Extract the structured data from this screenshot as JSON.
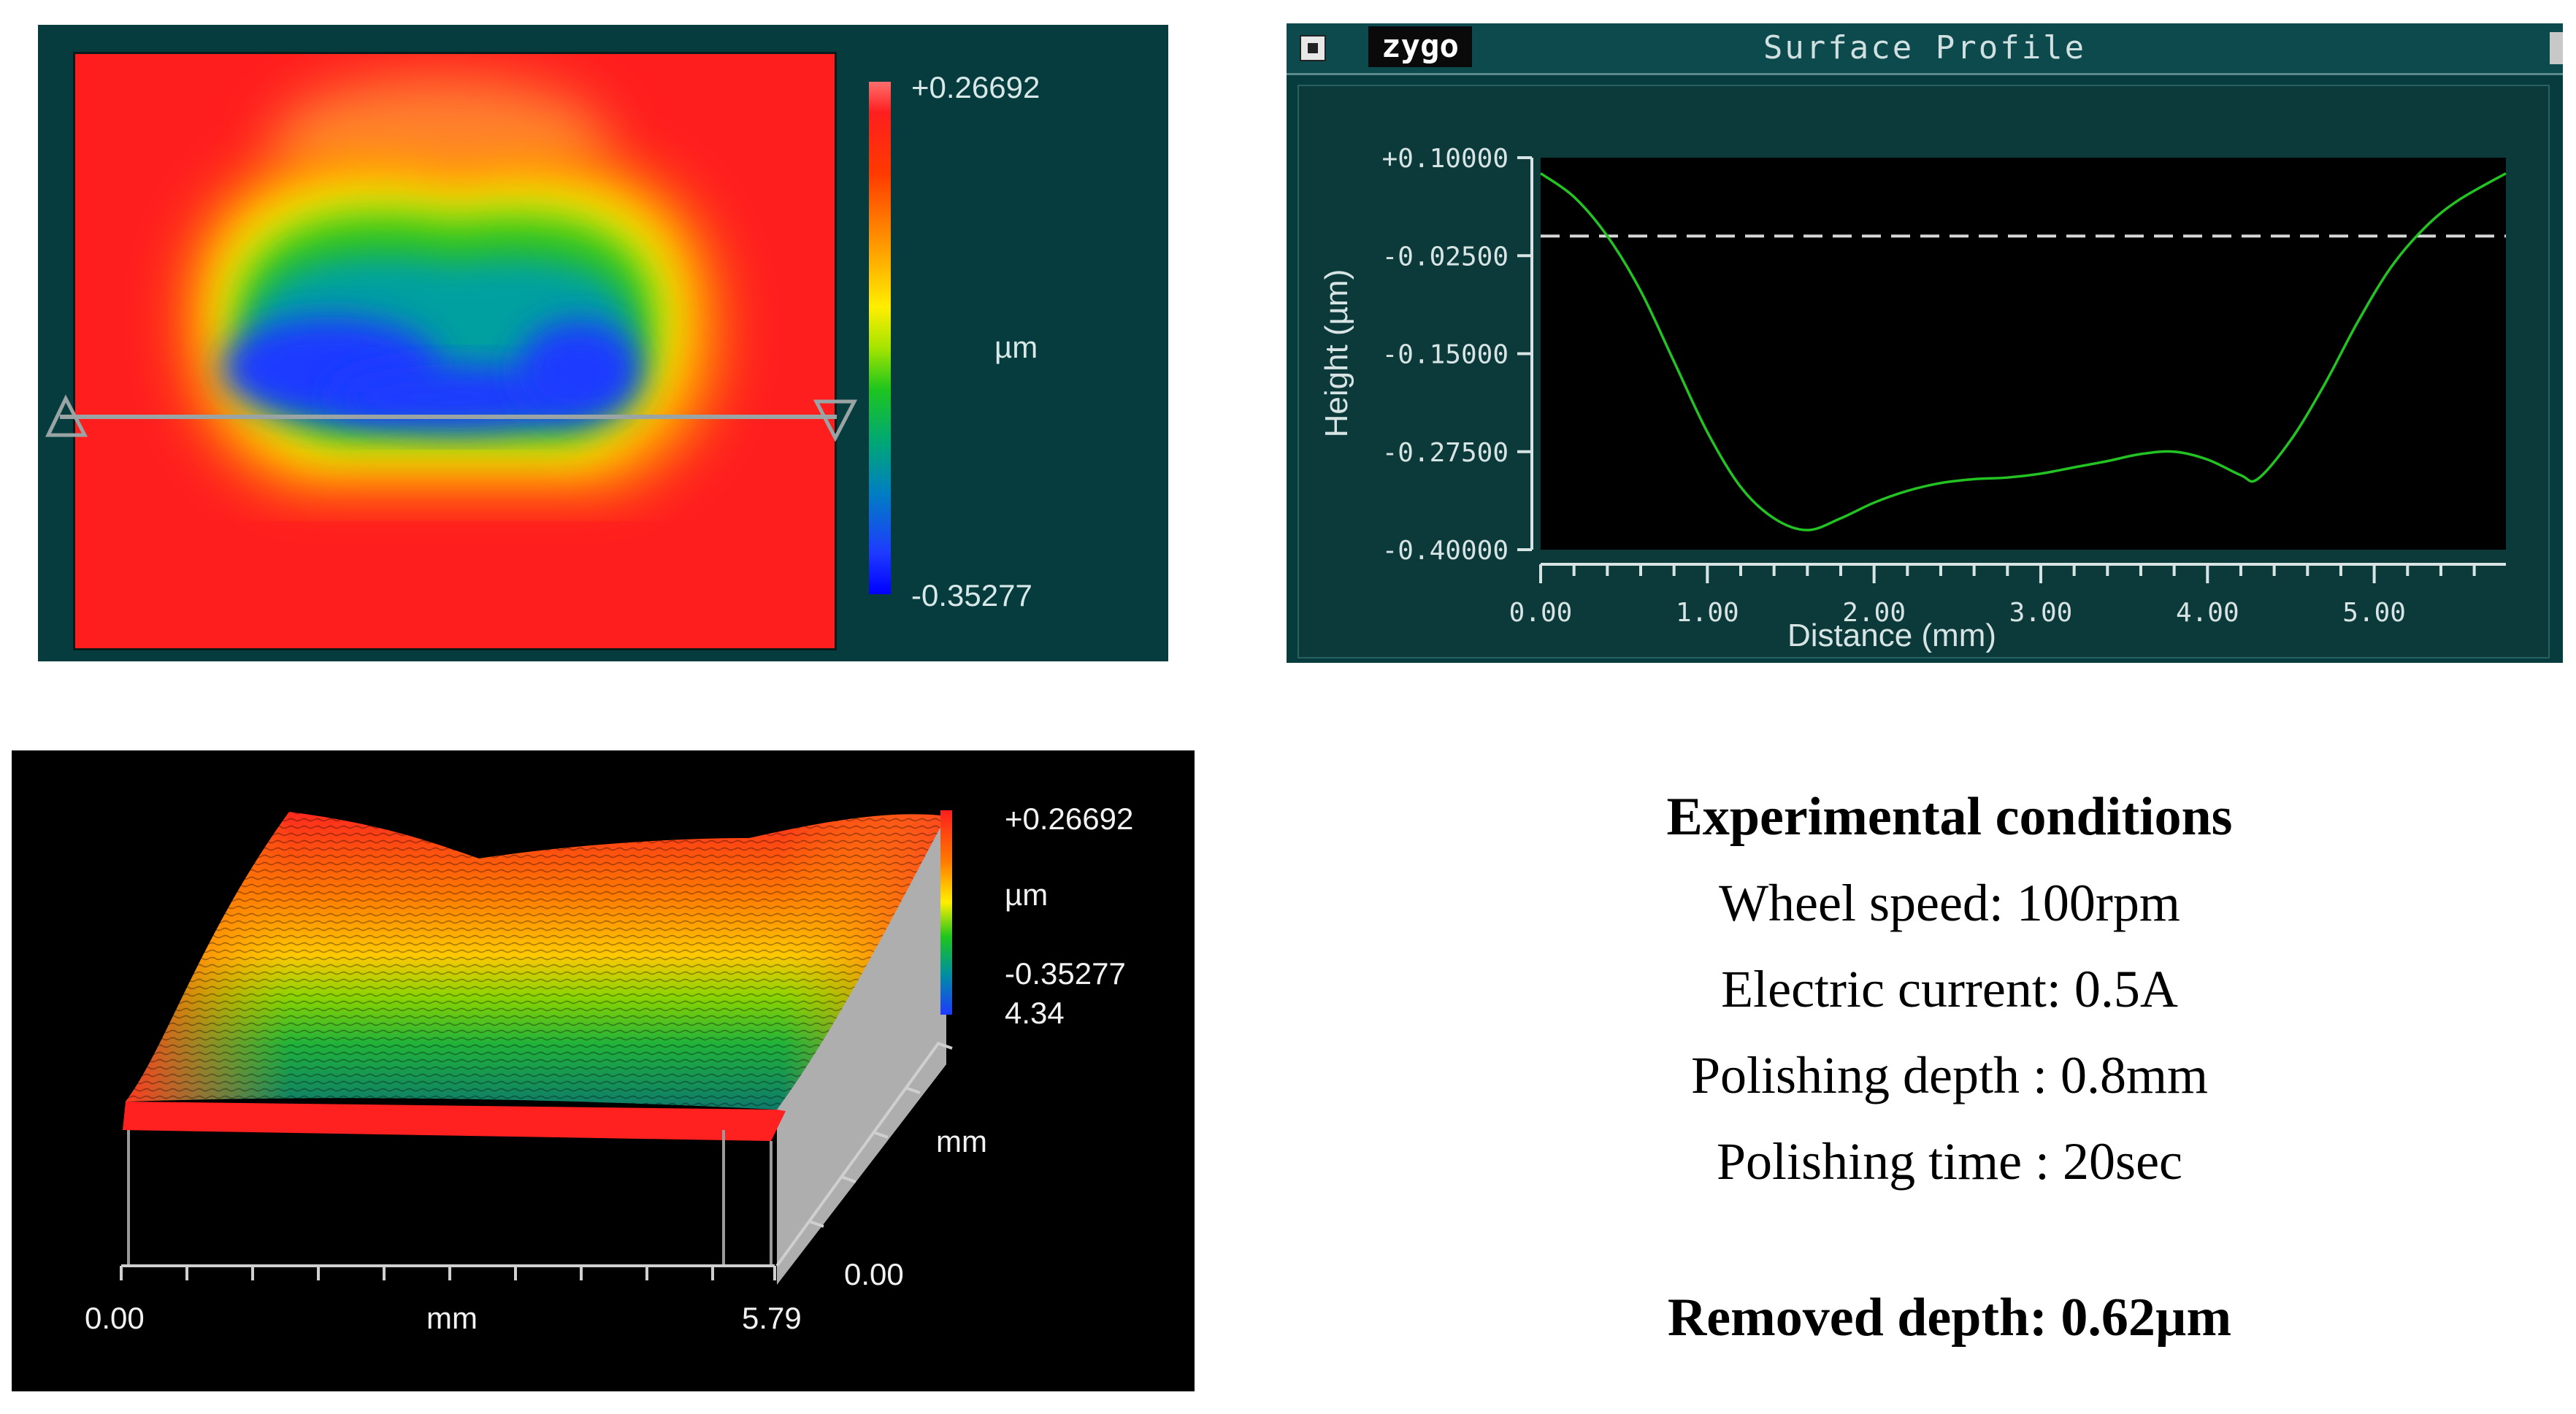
{
  "map2d": {
    "colorbar_max": "+0.26692",
    "colorbar_min": "-0.35277",
    "unit": "µm",
    "colors": {
      "panel_bg": "#063c3e",
      "high": "#ff1e1e",
      "mid": "#ffee00",
      "low": "#0000ff"
    }
  },
  "profile": {
    "window_icon": "close-box-icon",
    "brand": "zygo",
    "title": "Surface Profile",
    "chart_data": {
      "type": "line",
      "xlabel": "Distance (mm)",
      "ylabel": "Height (µm)",
      "xlim": [
        0,
        5.79
      ],
      "ylim": [
        -0.4,
        0.1
      ],
      "x_ticks": [
        "0.00",
        "1.00",
        "2.00",
        "3.00",
        "4.00",
        "5.00"
      ],
      "y_ticks": [
        "+0.10000",
        "-0.02500",
        "-0.15000",
        "-0.27500",
        "-0.40000"
      ],
      "reference_line_y": 0.0,
      "series": [
        {
          "color": "#22c322",
          "x": [
            0.0,
            0.2,
            0.4,
            0.6,
            0.8,
            1.0,
            1.2,
            1.4,
            1.6,
            1.8,
            2.0,
            2.2,
            2.4,
            2.6,
            2.8,
            3.0,
            3.2,
            3.4,
            3.6,
            3.8,
            4.0,
            4.2,
            4.3,
            4.5,
            4.7,
            4.9,
            5.1,
            5.3,
            5.5,
            5.79
          ],
          "y": [
            0.08,
            0.05,
            0.0,
            -0.07,
            -0.16,
            -0.25,
            -0.32,
            -0.36,
            -0.375,
            -0.36,
            -0.34,
            -0.325,
            -0.315,
            -0.31,
            -0.308,
            -0.303,
            -0.295,
            -0.287,
            -0.278,
            -0.275,
            -0.285,
            -0.305,
            -0.31,
            -0.26,
            -0.19,
            -0.11,
            -0.04,
            0.01,
            0.045,
            0.08
          ]
        }
      ]
    }
  },
  "surface3d": {
    "colorbar_max": "+0.26692",
    "unit": "µm",
    "colorbar_min": "-0.35277",
    "y_max": "4.34",
    "y_unit": "mm",
    "y_min": "0.00",
    "x_min": "0.00",
    "x_unit": "mm",
    "x_max": "5.79"
  },
  "conditions": {
    "heading": "Experimental conditions",
    "lines": [
      "Wheel speed: 100rpm",
      "Electric current: 0.5A",
      "Polishing depth : 0.8mm",
      "Polishing time : 20sec"
    ],
    "removed": "Removed depth: 0.62µm"
  }
}
